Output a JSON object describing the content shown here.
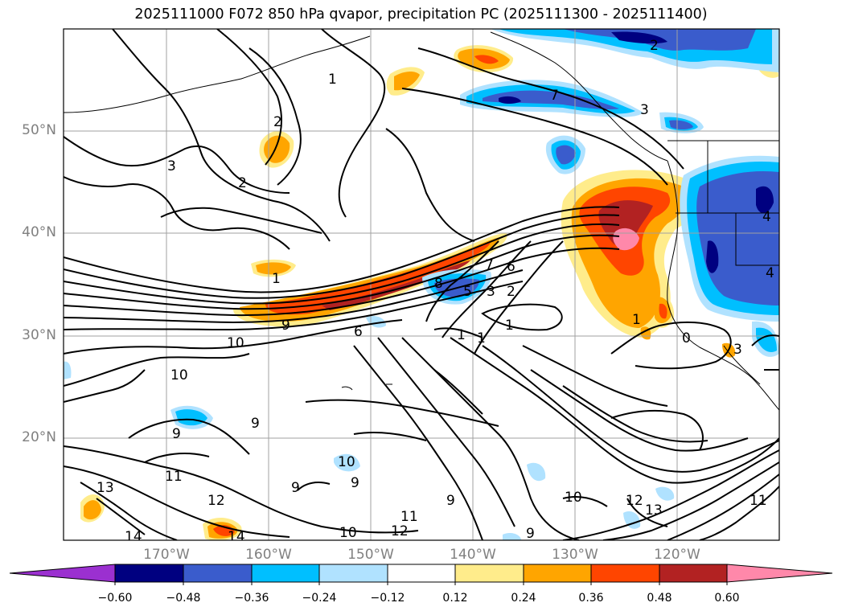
{
  "title": "2025111000 F072 850 hPa qvapor, precipitation PC (2025111300 - 2025111400)",
  "lat_labels": [
    "50°N",
    "40°N",
    "30°N",
    "20°N"
  ],
  "lon_labels": [
    "170°W",
    "160°W",
    "150°W",
    "140°W",
    "130°W",
    "120°W"
  ],
  "colorbar": {
    "ticks": [
      "−0.60",
      "−0.48",
      "−0.36",
      "−0.24",
      "−0.12",
      "0.12",
      "0.24",
      "0.36",
      "0.48",
      "0.60"
    ],
    "colors": [
      "#9b30d0",
      "#000080",
      "#3a5ccc",
      "#00bfff",
      "#b0e2ff",
      "#ffffff",
      "#ffec8b",
      "#ffa500",
      "#ff4500",
      "#b22222",
      "#ff88aa"
    ]
  },
  "contour_labels": [
    "1",
    "2",
    "2",
    "3",
    "1",
    "8",
    "6",
    "5",
    "3",
    "2",
    "7",
    "1",
    "1",
    "9",
    "6",
    "10",
    "10",
    "9",
    "9",
    "11",
    "13",
    "12",
    "14",
    "14",
    "10",
    "9",
    "9",
    "10",
    "10",
    "12",
    "11",
    "9",
    "9",
    "12",
    "13",
    "11",
    "1",
    "0",
    "3",
    "2",
    "3",
    "4",
    "4",
    "7",
    "1"
  ]
}
